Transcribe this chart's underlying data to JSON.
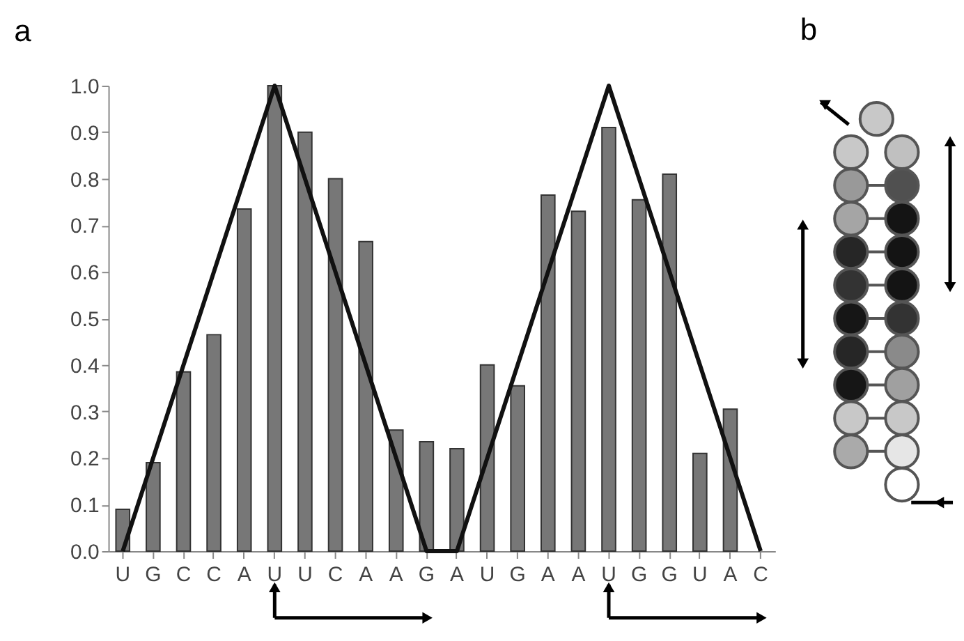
{
  "chart_data": {
    "type": "bar",
    "title": "a",
    "categories": [
      "U",
      "G",
      "C",
      "C",
      "A",
      "U",
      "U",
      "C",
      "A",
      "A",
      "G",
      "A",
      "U",
      "G",
      "A",
      "A",
      "U",
      "G",
      "G",
      "U",
      "A",
      "C"
    ],
    "series": [
      {
        "color": "#777777",
        "values": [
          0.09,
          0.19,
          0.385,
          0.465,
          0.735,
          1.0,
          0.9,
          0.8,
          0.665,
          0.26,
          0.235,
          0.22,
          0.4,
          0.355,
          0.765,
          0.73,
          0.91,
          0.755,
          0.81,
          0.21,
          0.305,
          null
        ]
      },
      {
        "type": "line",
        "color": "#111111",
        "values": [
          0,
          0.2,
          0.4,
          0.6,
          0.8,
          1.0,
          0.8,
          0.6,
          0.4,
          0.2,
          0,
          0,
          0.2,
          0.4,
          0.6,
          0.8,
          1.0,
          0.8,
          0.6,
          0.4,
          0.2,
          0
        ]
      }
    ],
    "ylim": [
      0,
      1
    ],
    "yticks": [
      {
        "value": 0,
        "label": "0.0"
      },
      {
        "value": 0.1,
        "label": "0.1"
      },
      {
        "value": 0.2,
        "label": "0.2"
      },
      {
        "value": 0.3,
        "label": "0.3"
      },
      {
        "value": 0.4,
        "label": "0.4"
      },
      {
        "value": 0.5,
        "label": "0.5"
      },
      {
        "value": 0.6,
        "label": "0.6"
      },
      {
        "value": 0.7,
        "label": "0.7"
      },
      {
        "value": 0.8,
        "label": "0.8"
      },
      {
        "value": 0.9,
        "label": "0.9"
      },
      {
        "value": 1,
        "label": "1.0"
      }
    ],
    "grid": false,
    "marker": "none",
    "line_style": "solid",
    "annotations": [
      "b"
    ]
  }
}
